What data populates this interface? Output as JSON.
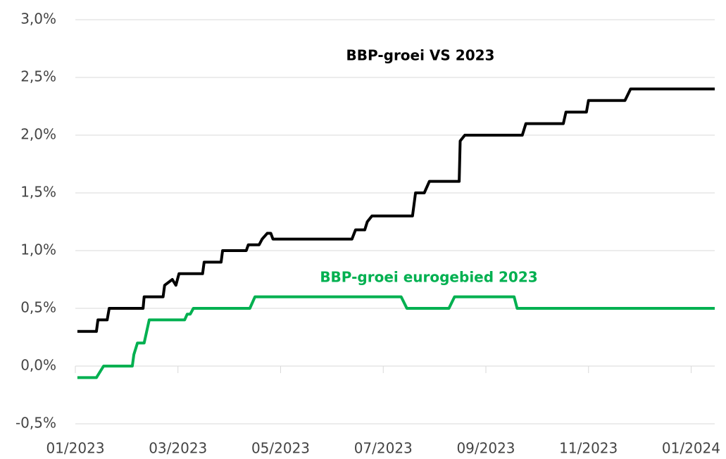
{
  "chart_data": {
    "type": "line",
    "xticks": [
      {
        "value": 0,
        "label": "01/2023"
      },
      {
        "value": 2,
        "label": "03/2023"
      },
      {
        "value": 4,
        "label": "05/2023"
      },
      {
        "value": 6,
        "label": "07/2023"
      },
      {
        "value": 8,
        "label": "09/2023"
      },
      {
        "value": 10,
        "label": "11/2023"
      },
      {
        "value": 12,
        "label": "01/2024"
      }
    ],
    "xlim": [
      0,
      12.46
    ],
    "ylim": [
      -0.5,
      3.0
    ],
    "yticks": [
      {
        "value": -0.5,
        "label": "-0,5%"
      },
      {
        "value": 0,
        "label": "0,0%"
      },
      {
        "value": 0.5,
        "label": "0,5%"
      },
      {
        "value": 1.0,
        "label": "1,0%"
      },
      {
        "value": 1.5,
        "label": "1,5%"
      },
      {
        "value": 2.0,
        "label": "2,0%"
      },
      {
        "value": 2.5,
        "label": "2,5%"
      },
      {
        "value": 3.0,
        "label": "3,0%"
      }
    ],
    "grid": true,
    "series": [
      {
        "name": "BBP-groei VS 2023",
        "color": "#000000",
        "x": [
          0.04,
          0.41,
          0.44,
          0.62,
          0.66,
          1.32,
          1.34,
          1.71,
          1.74,
          1.89,
          1.96,
          2.02,
          2.48,
          2.51,
          2.84,
          2.87,
          3.33,
          3.37,
          3.58,
          3.64,
          3.74,
          3.81,
          3.85,
          5.39,
          5.46,
          5.64,
          5.69,
          5.78,
          6.57,
          6.63,
          6.8,
          6.9,
          7.48,
          7.5,
          7.59,
          8.71,
          8.78,
          9.51,
          9.56,
          9.96,
          10.0,
          10.71,
          10.82,
          12.46
        ],
        "values": [
          0.3,
          0.3,
          0.4,
          0.4,
          0.5,
          0.5,
          0.6,
          0.6,
          0.7,
          0.75,
          0.7,
          0.8,
          0.8,
          0.9,
          0.9,
          1.0,
          1.0,
          1.05,
          1.05,
          1.1,
          1.15,
          1.15,
          1.1,
          1.1,
          1.18,
          1.18,
          1.25,
          1.3,
          1.3,
          1.5,
          1.5,
          1.6,
          1.6,
          1.95,
          2.0,
          2.0,
          2.1,
          2.1,
          2.2,
          2.2,
          2.3,
          2.3,
          2.4,
          2.4
        ]
      },
      {
        "name": "BBP-groei eurogebied 2023",
        "color": "#00b050",
        "x": [
          0.04,
          0.41,
          0.55,
          1.11,
          1.14,
          1.21,
          1.34,
          1.44,
          2.13,
          2.18,
          2.24,
          2.3,
          3.4,
          3.5,
          6.35,
          6.46,
          7.28,
          7.39,
          8.55,
          8.61,
          12.46
        ],
        "values": [
          -0.1,
          -0.1,
          0,
          0,
          0.1,
          0.2,
          0.2,
          0.4,
          0.4,
          0.45,
          0.45,
          0.5,
          0.5,
          0.6,
          0.6,
          0.5,
          0.5,
          0.6,
          0.6,
          0.5,
          0.5
        ]
      }
    ]
  }
}
